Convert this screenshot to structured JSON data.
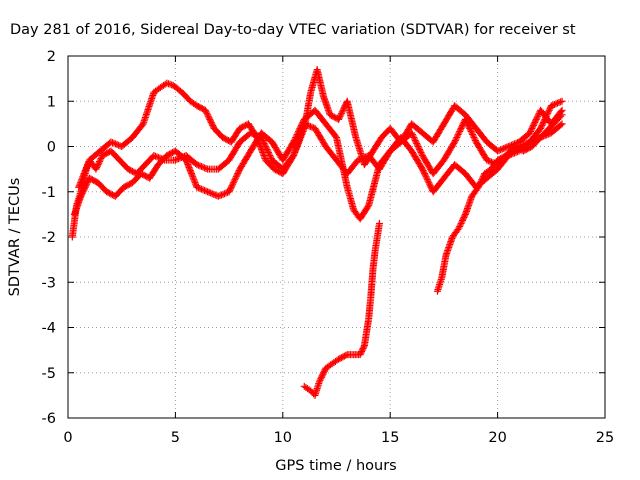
{
  "chart_data": {
    "type": "scatter",
    "title": "Day 281 of 2016, Sidereal Day-to-day VTEC variation (SDTVAR) for receiver st",
    "xlabel": "GPS time / hours",
    "ylabel": "SDTVAR / TECUs",
    "xlim": [
      0,
      25
    ],
    "ylim": [
      -6,
      2
    ],
    "xticks": [
      "0",
      "5",
      "10",
      "15",
      "20",
      "25"
    ],
    "yticks": [
      "-6",
      "-5",
      "-4",
      "-3",
      "-2",
      "-1",
      "0",
      "1",
      "2"
    ],
    "grid": true,
    "legend": "none",
    "marker": "+",
    "series_color": "#ff0000",
    "series": [
      {
        "x": [
          0.2,
          0.4,
          0.6,
          0.8,
          1.0,
          1.3,
          1.6,
          2.0,
          2.4,
          2.8,
          3.2,
          3.6,
          4.0,
          4.5,
          5.0,
          5.5,
          6.0,
          6.5,
          7.0,
          7.5,
          8.0,
          8.5,
          9.0,
          9.5,
          10.0,
          10.5,
          11.0,
          11.5,
          12.0,
          12.5,
          13.0,
          13.5,
          14.0,
          14.5,
          15.0,
          15.5,
          16.0,
          16.5,
          17.0,
          17.5,
          18.0,
          18.5,
          19.0,
          19.5,
          20.0,
          20.5,
          21.0,
          21.5,
          22.0,
          22.5,
          23.0
        ],
        "y": [
          -2.0,
          -1.3,
          -1.0,
          -0.6,
          -0.3,
          -0.5,
          -0.2,
          -0.1,
          -0.3,
          -0.5,
          -0.6,
          -0.4,
          -0.2,
          -0.3,
          -0.3,
          -0.2,
          -0.4,
          -0.5,
          -0.5,
          -0.3,
          0.1,
          0.3,
          0.2,
          -0.3,
          -0.5,
          -0.2,
          0.5,
          0.4,
          0.0,
          -0.3,
          -0.6,
          -0.3,
          -0.2,
          -0.5,
          -0.1,
          0.1,
          0.3,
          -0.2,
          -0.6,
          -0.3,
          0.1,
          0.6,
          0.1,
          -0.3,
          -0.4,
          -0.2,
          0.0,
          0.1,
          0.2,
          0.3,
          0.5
        ]
      },
      {
        "x": [
          0.3,
          0.6,
          1.0,
          1.4,
          1.8,
          2.2,
          2.6,
          3.0,
          3.4,
          3.8,
          4.2,
          4.6,
          5.0,
          5.5,
          6.0,
          6.5,
          7.0,
          7.5,
          8.0,
          8.5,
          9.0,
          9.5,
          10.0,
          10.5,
          11.0,
          11.5,
          12.0,
          12.5,
          13.0,
          13.3,
          13.6,
          14.0,
          14.5,
          15.0,
          15.5,
          16.0,
          16.5,
          17.0,
          17.5,
          18.0,
          18.5,
          19.0,
          19.5,
          20.0,
          20.5,
          21.0,
          21.5,
          22.0,
          22.5,
          23.0
        ],
        "y": [
          -1.5,
          -1.1,
          -0.7,
          -0.8,
          -1.0,
          -1.1,
          -0.9,
          -0.8,
          -0.6,
          -0.7,
          -0.4,
          -0.2,
          -0.1,
          -0.3,
          -0.9,
          -1.0,
          -1.1,
          -1.0,
          -0.5,
          -0.1,
          0.3,
          0.1,
          -0.3,
          0.1,
          0.6,
          0.8,
          0.5,
          0.2,
          -0.9,
          -1.4,
          -1.6,
          -1.3,
          -0.4,
          -0.1,
          0.2,
          -0.1,
          -0.5,
          -1.0,
          -0.7,
          -0.4,
          -0.6,
          -0.9,
          -0.7,
          -0.5,
          -0.2,
          -0.1,
          0.1,
          0.4,
          0.9,
          1.0
        ]
      },
      {
        "x": [
          0.5,
          1.0,
          1.5,
          2.0,
          2.5,
          3.0,
          3.5,
          4.0,
          4.3,
          4.6,
          4.9,
          5.3,
          5.7,
          6.0,
          6.4,
          6.8,
          7.2,
          7.6,
          8.0,
          8.4,
          8.8,
          9.2,
          9.6,
          10.0,
          10.5,
          11.0,
          11.3,
          11.6,
          11.9,
          12.2,
          12.6,
          13.0,
          13.4,
          13.8,
          14.2,
          14.6,
          15.0,
          15.5,
          16.0,
          16.5,
          17.0,
          17.5,
          18.0,
          18.5,
          19.0,
          19.5,
          20.0,
          20.5,
          21.0,
          21.5,
          22.0,
          22.5,
          23.0
        ],
        "y": [
          -0.9,
          -0.3,
          -0.1,
          0.1,
          0.0,
          0.2,
          0.5,
          1.2,
          1.3,
          1.4,
          1.35,
          1.2,
          1.0,
          0.9,
          0.8,
          0.4,
          0.2,
          0.1,
          0.4,
          0.5,
          0.2,
          -0.3,
          -0.5,
          -0.6,
          -0.2,
          0.4,
          1.2,
          1.7,
          1.1,
          0.7,
          0.6,
          1.0,
          0.2,
          -0.4,
          -0.1,
          0.2,
          0.4,
          0.1,
          0.5,
          0.3,
          0.1,
          0.5,
          0.9,
          0.7,
          0.4,
          0.1,
          -0.1,
          0.0,
          0.1,
          0.3,
          0.8,
          0.5,
          0.8
        ]
      },
      {
        "x": [
          11.0,
          11.3,
          11.5,
          11.7,
          12.0,
          12.3,
          12.6,
          13.0,
          13.3,
          13.6,
          13.8,
          14.0,
          14.1,
          14.2,
          14.3,
          14.4,
          14.5
        ],
        "y": [
          -5.3,
          -5.4,
          -5.5,
          -5.2,
          -4.9,
          -4.8,
          -4.7,
          -4.6,
          -4.6,
          -4.6,
          -4.4,
          -3.8,
          -3.3,
          -2.7,
          -2.3,
          -2.0,
          -1.7
        ]
      },
      {
        "x": [
          17.2,
          17.4,
          17.6,
          17.9,
          18.2,
          18.5,
          18.8,
          19.1,
          19.4,
          19.7,
          20.0,
          20.4,
          20.8,
          21.2,
          21.6,
          22.0,
          22.4,
          22.8,
          23.0
        ],
        "y": [
          -3.2,
          -2.9,
          -2.4,
          -2.0,
          -1.8,
          -1.5,
          -1.1,
          -0.9,
          -0.6,
          -0.5,
          -0.3,
          -0.2,
          0.0,
          -0.1,
          0.0,
          0.2,
          0.4,
          0.6,
          0.7
        ]
      }
    ]
  }
}
